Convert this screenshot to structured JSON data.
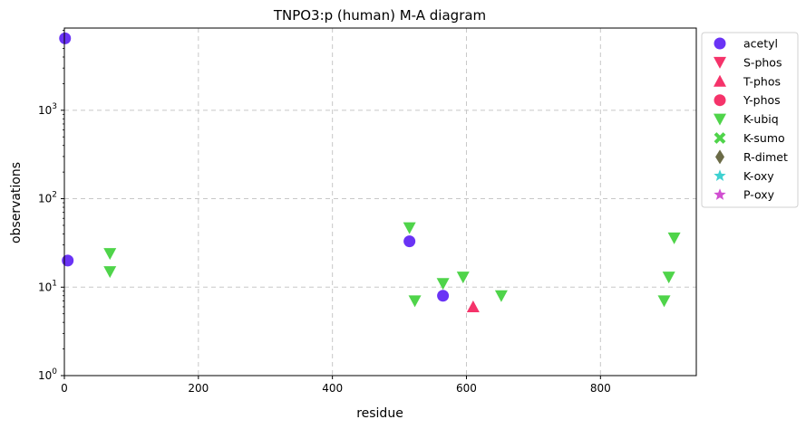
{
  "chart_data": {
    "type": "scatter",
    "title": "TNPO3:p (human) M-A diagram",
    "xlabel": "residue",
    "ylabel": "observations",
    "xlim": [
      0,
      943
    ],
    "ylim": [
      1,
      8500
    ],
    "yscale": "log",
    "xticks": [
      0,
      200,
      400,
      600,
      800
    ],
    "yticks": [
      {
        "value": 1,
        "base": "10",
        "exp": "0"
      },
      {
        "value": 10,
        "base": "10",
        "exp": "1"
      },
      {
        "value": 100,
        "base": "10",
        "exp": "2"
      },
      {
        "value": 1000,
        "base": "10",
        "exp": "3"
      }
    ],
    "grid": true,
    "legend_position": "outside-right",
    "series": [
      {
        "name": "acetyl",
        "marker": "circle",
        "color": "#6a33f5",
        "points": [
          {
            "x": 1,
            "y": 6500
          },
          {
            "x": 5,
            "y": 20
          },
          {
            "x": 515,
            "y": 33
          },
          {
            "x": 565,
            "y": 8
          }
        ]
      },
      {
        "name": "S-phos",
        "marker": "triangle-down",
        "color": "#f5336a",
        "points": []
      },
      {
        "name": "T-phos",
        "marker": "triangle-up",
        "color": "#f5336a",
        "points": [
          {
            "x": 610,
            "y": 6
          }
        ]
      },
      {
        "name": "Y-phos",
        "marker": "circle",
        "color": "#f5336a",
        "points": []
      },
      {
        "name": "K-ubiq",
        "marker": "triangle-down",
        "color": "#4fd44a",
        "points": [
          {
            "x": 68,
            "y": 24
          },
          {
            "x": 68,
            "y": 15
          },
          {
            "x": 515,
            "y": 47
          },
          {
            "x": 523,
            "y": 7
          },
          {
            "x": 565,
            "y": 11
          },
          {
            "x": 595,
            "y": 13
          },
          {
            "x": 652,
            "y": 8
          },
          {
            "x": 895,
            "y": 7
          },
          {
            "x": 902,
            "y": 13
          },
          {
            "x": 910,
            "y": 36
          }
        ]
      },
      {
        "name": "K-sumo",
        "marker": "x",
        "color": "#4fd44a",
        "points": []
      },
      {
        "name": "R-dimet",
        "marker": "diamond",
        "color": "#6b6b47",
        "points": []
      },
      {
        "name": "K-oxy",
        "marker": "star",
        "color": "#3fd1d1",
        "points": []
      },
      {
        "name": "P-oxy",
        "marker": "star",
        "color": "#d14fd1",
        "points": []
      }
    ]
  }
}
